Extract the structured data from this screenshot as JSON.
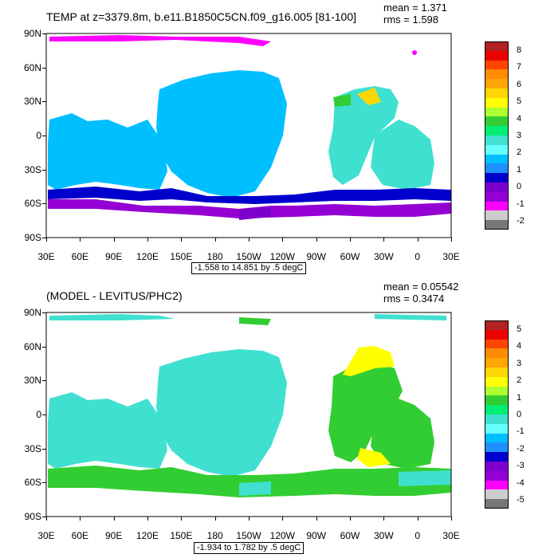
{
  "panels": [
    {
      "title": "TEMP at z=3379.8m, b.e11.B1850C5CN.f09_g16.005 [81-100]",
      "mean_label": "mean = 1.371",
      "rms_label": "rms = 1.598",
      "range_label": "-1.558 to 14.851 by .5 degC",
      "lat_labels": [
        "90N",
        "60N",
        "30N",
        "0",
        "30S",
        "60S",
        "90S"
      ],
      "lon_labels": [
        "30E",
        "60E",
        "90E",
        "120E",
        "150E",
        "180",
        "150W",
        "120W",
        "90W",
        "60W",
        "30W",
        "0",
        "30E"
      ],
      "colorbar": {
        "tick_labels": [
          "8",
          "7",
          "6",
          "5",
          "4",
          "3",
          "2",
          "1",
          "0",
          "-1",
          "-2"
        ],
        "colors": [
          "#b22222",
          "#ee0000",
          "#ff4500",
          "#ff8c00",
          "#ffa500",
          "#ffd700",
          "#ffff00",
          "#adff2f",
          "#32cd32",
          "#00ee76",
          "#40e0d0",
          "#66ffff",
          "#00bfff",
          "#1e90ff",
          "#0000cd",
          "#7b00cc",
          "#9400d3",
          "#ff00ff",
          "#cccccc",
          "#777777"
        ]
      }
    },
    {
      "title": "(MODEL - LEVITUS/PHC2)",
      "mean_label": "mean = 0.05542",
      "rms_label": "rms = 0.3474",
      "range_label": "-1.934 to 1.782 by .5 degC",
      "lat_labels": [
        "90N",
        "60N",
        "30N",
        "0",
        "30S",
        "60S",
        "90S"
      ],
      "lon_labels": [
        "30E",
        "60E",
        "90E",
        "120E",
        "150E",
        "180",
        "150W",
        "120W",
        "90W",
        "60W",
        "30W",
        "0",
        "30E"
      ],
      "colorbar": {
        "tick_labels": [
          "5",
          "4",
          "3",
          "2",
          "1",
          "0",
          "-1",
          "-2",
          "-3",
          "-4",
          "-5"
        ],
        "colors": [
          "#b22222",
          "#ee0000",
          "#ff4500",
          "#ff8c00",
          "#ffa500",
          "#ffd700",
          "#ffff00",
          "#adff2f",
          "#32cd32",
          "#00ee76",
          "#40e0d0",
          "#66ffff",
          "#00bfff",
          "#1e90ff",
          "#0000cd",
          "#7b00cc",
          "#9400d3",
          "#ff00ff",
          "#cccccc",
          "#777777"
        ]
      }
    }
  ]
}
